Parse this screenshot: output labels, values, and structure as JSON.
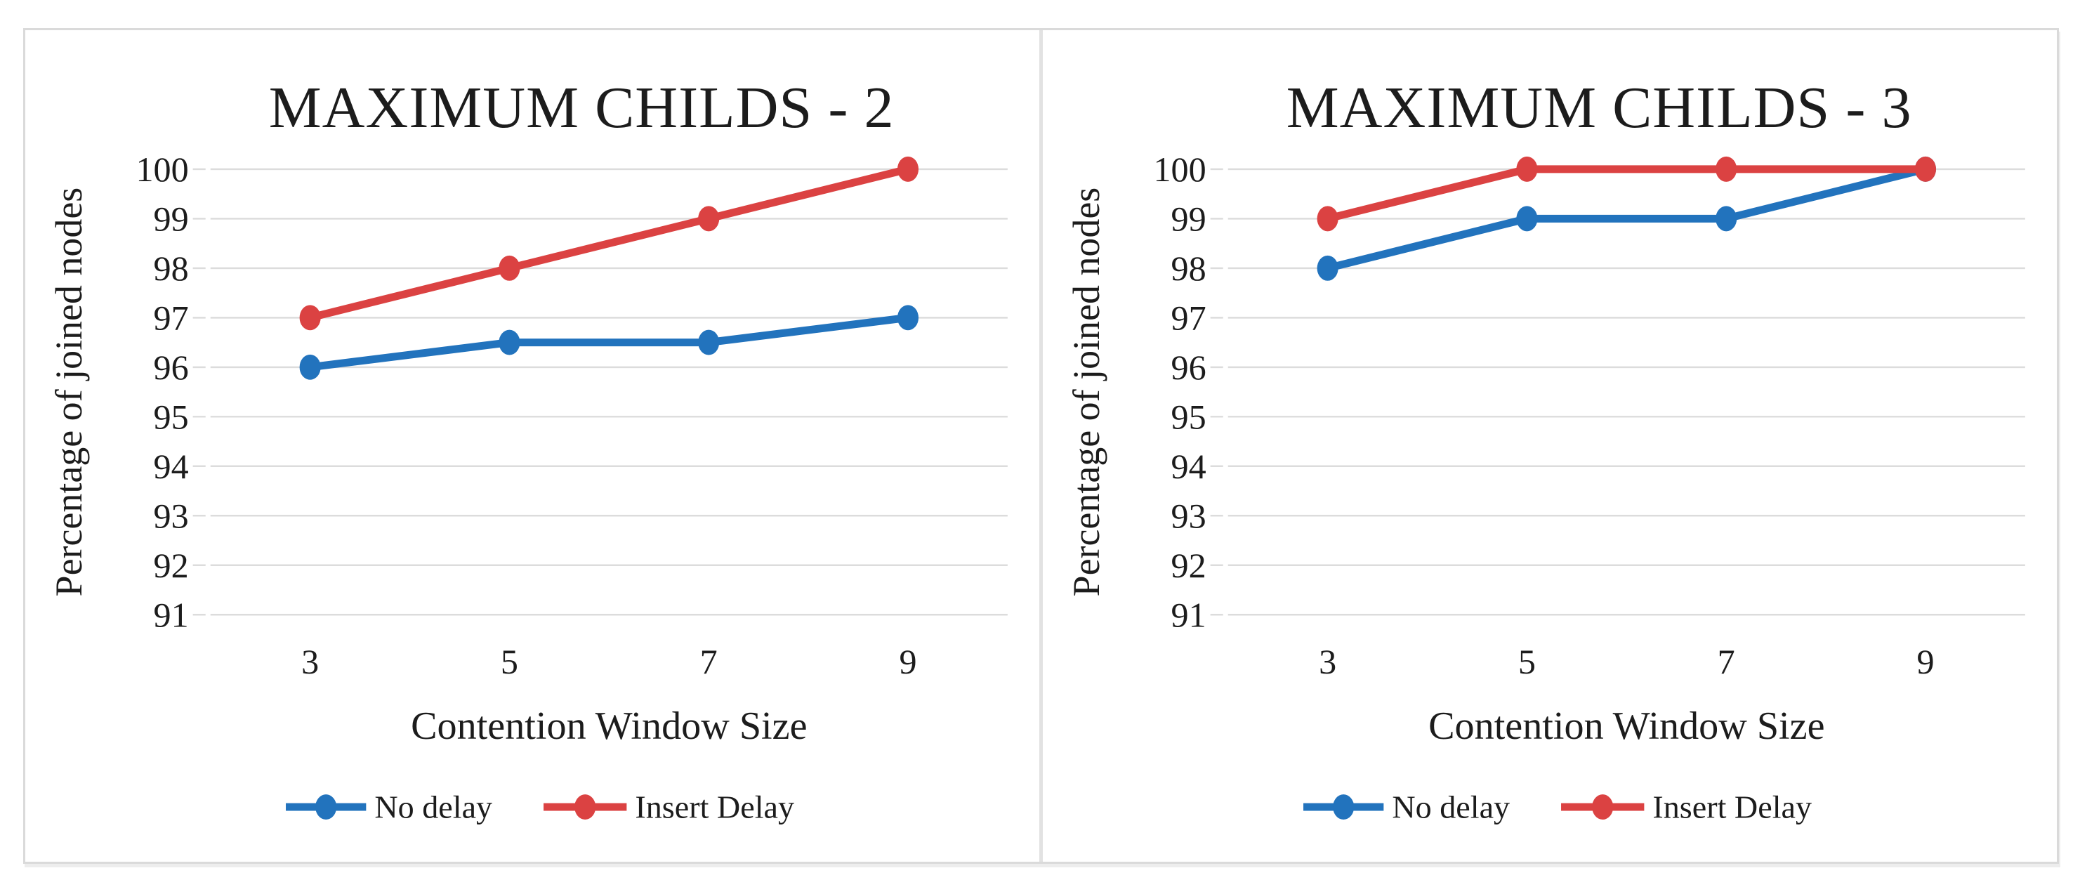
{
  "figure": {
    "background": "#FFFFFF",
    "border_color": "#DADADA",
    "divider_color": "#E2E2E2"
  },
  "colors": {
    "gridline": "#DCDCDC",
    "tick": "#DCDCDC",
    "text": "#1C1C1C"
  },
  "legend": {
    "position": "bottom"
  },
  "chart_data": [
    {
      "type": "line",
      "title": "MAXIMUM CHILDS - 2",
      "xlabel": "Contention Window Size",
      "ylabel": "Percentage of joined nodes",
      "categories": [
        "3",
        "5",
        "7",
        "9"
      ],
      "ylim": [
        91,
        100
      ],
      "ytick_step": 1,
      "yticks": [
        91,
        92,
        93,
        94,
        95,
        96,
        97,
        98,
        99,
        100
      ],
      "grid": true,
      "legend_position": "bottom",
      "series": [
        {
          "name": "No delay",
          "color": "#2273BD",
          "values": [
            96,
            96.5,
            96.5,
            97
          ]
        },
        {
          "name": "Insert Delay",
          "color": "#DB4242",
          "values": [
            97,
            98,
            99,
            100
          ]
        }
      ]
    },
    {
      "type": "line",
      "title": "MAXIMUM CHILDS - 3",
      "xlabel": "Contention Window Size",
      "ylabel": "Percentage of joined nodes",
      "categories": [
        "3",
        "5",
        "7",
        "9"
      ],
      "ylim": [
        91,
        100
      ],
      "ytick_step": 1,
      "yticks": [
        91,
        92,
        93,
        94,
        95,
        96,
        97,
        98,
        99,
        100
      ],
      "grid": true,
      "legend_position": "bottom",
      "series": [
        {
          "name": "No delay",
          "color": "#2273BD",
          "values": [
            98,
            99,
            99,
            100
          ]
        },
        {
          "name": "Insert Delay",
          "color": "#DB4242",
          "values": [
            99,
            100,
            100,
            100
          ]
        }
      ]
    }
  ]
}
